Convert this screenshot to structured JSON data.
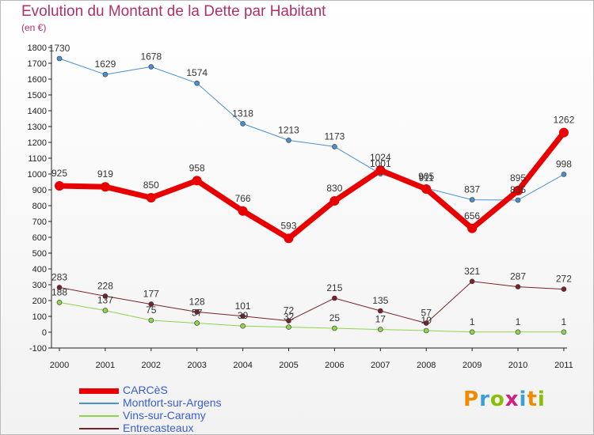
{
  "title": "Evolution du Montant de la Dette par Habitant",
  "unit": "(en €)",
  "logo": {
    "text": "Proxiti",
    "letter_colors": [
      "#f08a00",
      "#3aa0d8",
      "#88c000",
      "#d02080",
      "#3aa0d8",
      "#f08a00",
      "#88c000"
    ]
  },
  "chart_data": {
    "type": "line",
    "x": [
      "2000",
      "2001",
      "2002",
      "2003",
      "2004",
      "2005",
      "2006",
      "2007",
      "2008",
      "2009",
      "2010",
      "2011"
    ],
    "ylim": [
      -100,
      1800
    ],
    "yticks": [
      "-100",
      "0",
      "100",
      "200",
      "300",
      "400",
      "500",
      "600",
      "700",
      "800",
      "900",
      "1000",
      "1100",
      "1200",
      "1300",
      "1400",
      "1500",
      "1600",
      "1700",
      "1800"
    ],
    "grid": false,
    "legend": "bottom-left",
    "series": [
      {
        "name": "CARCèS",
        "color": "#e80000",
        "values": [
          925,
          919,
          850,
          958,
          766,
          593,
          830,
          1024,
          905,
          656,
          895,
          1262
        ]
      },
      {
        "name": "Montfort-sur-Argens",
        "color": "#4a8fd1",
        "values": [
          1730,
          1629,
          1678,
          1574,
          1318,
          1213,
          1173,
          1001,
          911,
          837,
          835,
          998
        ]
      },
      {
        "name": "Vins-sur-Caramy",
        "color": "#8ed44c",
        "values": [
          188,
          137,
          75,
          57,
          39,
          32,
          25,
          17,
          10,
          1,
          1,
          1
        ]
      },
      {
        "name": "Entrecasteaux",
        "color": "#7a2228",
        "values": [
          283,
          228,
          177,
          128,
          101,
          72,
          215,
          135,
          57,
          321,
          287,
          272
        ]
      }
    ]
  }
}
